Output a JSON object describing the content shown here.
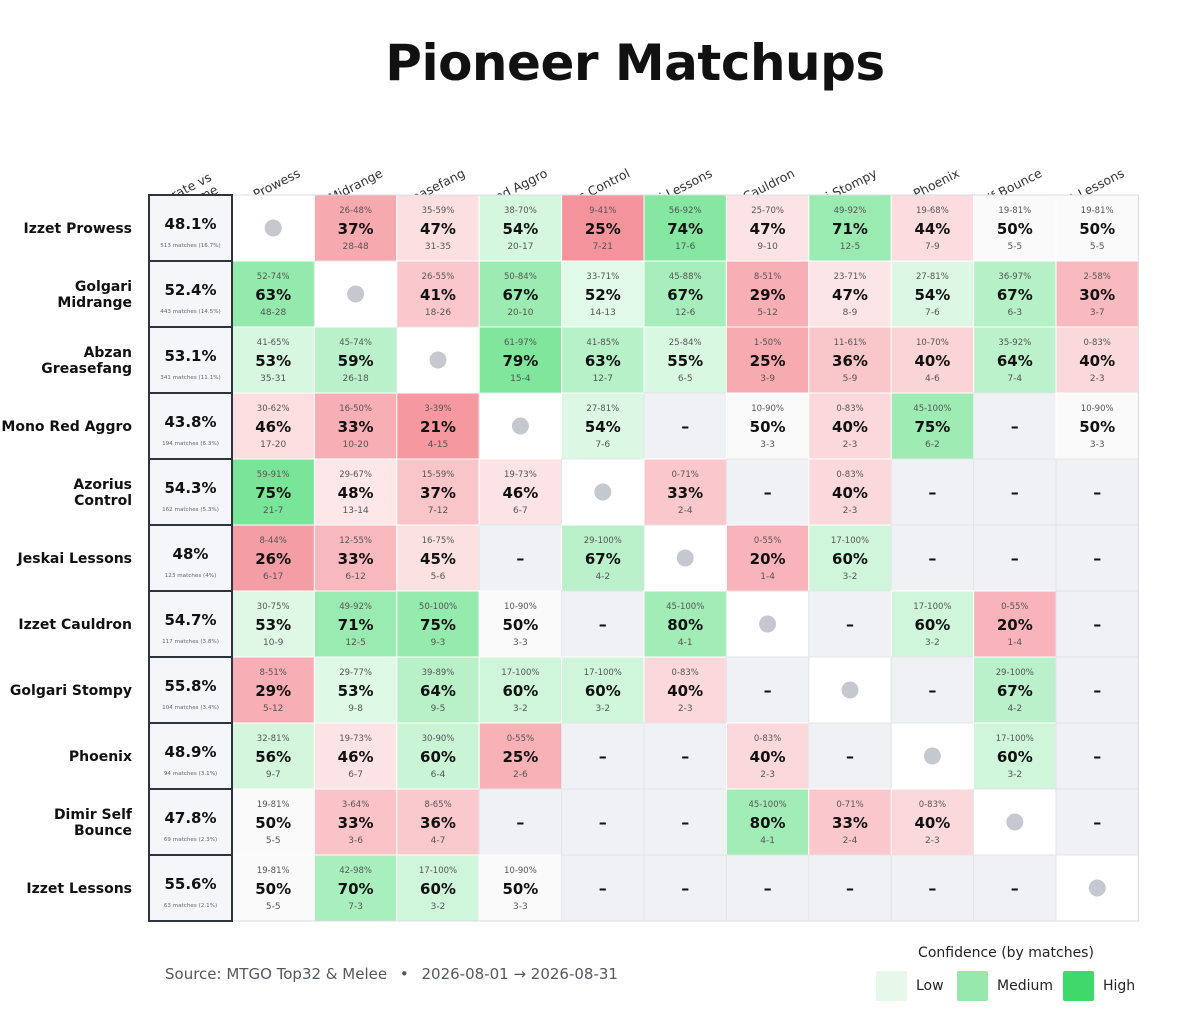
{
  "title": "Pioneer Matchups",
  "footer": {
    "source": "Source: MTGO Top32 & Melee",
    "separator": "•",
    "date_range": "2026-08-01 → 2026-08-31"
  },
  "legend": {
    "title": "Confidence (by matches)",
    "items": [
      {
        "label": "Low",
        "color": "#e6f8ea"
      },
      {
        "label": "Medium",
        "color": "#96e8ac"
      },
      {
        "label": "High",
        "color": "#3ed96a"
      }
    ]
  },
  "colors": {
    "neutral": "#fafafa",
    "empty": "#f0f1f4",
    "mirror_dot": "#c5c8cf",
    "border_dark": "#2d343c",
    "meta_bg": "#f4f6f9"
  },
  "chart_data": {
    "type": "heatmap",
    "title": "Pioneer Matchups",
    "meta_header": [
      "Winrate vs",
      "Metagame"
    ],
    "columns": [
      "Izzet Prowess",
      "Golgari Midrange",
      "Abzan Greasefang",
      "Mono Red Aggro",
      "Azorius Control",
      "Jeskai Lessons",
      "Izzet Cauldron",
      "Golgari Stompy",
      "Phoenix",
      "Dimir Self Bounce",
      "Izzet Lessons"
    ],
    "rows": [
      {
        "label": "Izzet Prowess",
        "label_lines": [
          "Izzet Prowess"
        ],
        "winrate": "48.1%",
        "matches": "513 matches (16.7%)",
        "cells": [
          {
            "mirror": true
          },
          {
            "range": "26-48%",
            "pct": "37%",
            "record": "28-48"
          },
          {
            "range": "35-59%",
            "pct": "47%",
            "record": "31-35"
          },
          {
            "range": "38-70%",
            "pct": "54%",
            "record": "20-17"
          },
          {
            "range": "9-41%",
            "pct": "25%",
            "record": "7-21"
          },
          {
            "range": "56-92%",
            "pct": "74%",
            "record": "17-6"
          },
          {
            "range": "25-70%",
            "pct": "47%",
            "record": "9-10"
          },
          {
            "range": "49-92%",
            "pct": "71%",
            "record": "12-5"
          },
          {
            "range": "19-68%",
            "pct": "44%",
            "record": "7-9"
          },
          {
            "range": "19-81%",
            "pct": "50%",
            "record": "5-5"
          },
          {
            "range": "19-81%",
            "pct": "50%",
            "record": "5-5"
          }
        ]
      },
      {
        "label": "Golgari Midrange",
        "label_lines": [
          "Golgari",
          "Midrange"
        ],
        "winrate": "52.4%",
        "matches": "443 matches (14.5%)",
        "cells": [
          {
            "range": "52-74%",
            "pct": "63%",
            "record": "48-28"
          },
          {
            "mirror": true
          },
          {
            "range": "26-55%",
            "pct": "41%",
            "record": "18-26"
          },
          {
            "range": "50-84%",
            "pct": "67%",
            "record": "20-10"
          },
          {
            "range": "33-71%",
            "pct": "52%",
            "record": "14-13"
          },
          {
            "range": "45-88%",
            "pct": "67%",
            "record": "12-6"
          },
          {
            "range": "8-51%",
            "pct": "29%",
            "record": "5-12"
          },
          {
            "range": "23-71%",
            "pct": "47%",
            "record": "8-9"
          },
          {
            "range": "27-81%",
            "pct": "54%",
            "record": "7-6"
          },
          {
            "range": "36-97%",
            "pct": "67%",
            "record": "6-3"
          },
          {
            "range": "2-58%",
            "pct": "30%",
            "record": "3-7"
          }
        ]
      },
      {
        "label": "Abzan Greasefang",
        "label_lines": [
          "Abzan",
          "Greasefang"
        ],
        "winrate": "53.1%",
        "matches": "341 matches (11.1%)",
        "cells": [
          {
            "range": "41-65%",
            "pct": "53%",
            "record": "35-31"
          },
          {
            "range": "45-74%",
            "pct": "59%",
            "record": "26-18"
          },
          {
            "mirror": true
          },
          {
            "range": "61-97%",
            "pct": "79%",
            "record": "15-4"
          },
          {
            "range": "41-85%",
            "pct": "63%",
            "record": "12-7"
          },
          {
            "range": "25-84%",
            "pct": "55%",
            "record": "6-5"
          },
          {
            "range": "1-50%",
            "pct": "25%",
            "record": "3-9"
          },
          {
            "range": "11-61%",
            "pct": "36%",
            "record": "5-9"
          },
          {
            "range": "10-70%",
            "pct": "40%",
            "record": "4-6"
          },
          {
            "range": "35-92%",
            "pct": "64%",
            "record": "7-4"
          },
          {
            "range": "0-83%",
            "pct": "40%",
            "record": "2-3"
          }
        ]
      },
      {
        "label": "Mono Red Aggro",
        "label_lines": [
          "Mono Red Aggro"
        ],
        "winrate": "43.8%",
        "matches": "194 matches (6.3%)",
        "cells": [
          {
            "range": "30-62%",
            "pct": "46%",
            "record": "17-20"
          },
          {
            "range": "16-50%",
            "pct": "33%",
            "record": "10-20"
          },
          {
            "range": "3-39%",
            "pct": "21%",
            "record": "4-15"
          },
          {
            "mirror": true
          },
          {
            "range": "27-81%",
            "pct": "54%",
            "record": "7-6"
          },
          {
            "dash": "–"
          },
          {
            "range": "10-90%",
            "pct": "50%",
            "record": "3-3"
          },
          {
            "range": "0-83%",
            "pct": "40%",
            "record": "2-3"
          },
          {
            "range": "45-100%",
            "pct": "75%",
            "record": "6-2"
          },
          {
            "dash": "–"
          },
          {
            "range": "10-90%",
            "pct": "50%",
            "record": "3-3"
          }
        ]
      },
      {
        "label": "Azorius Control",
        "label_lines": [
          "Azorius",
          "Control"
        ],
        "winrate": "54.3%",
        "matches": "162 matches (5.3%)",
        "cells": [
          {
            "range": "59-91%",
            "pct": "75%",
            "record": "21-7"
          },
          {
            "range": "29-67%",
            "pct": "48%",
            "record": "13-14"
          },
          {
            "range": "15-59%",
            "pct": "37%",
            "record": "7-12"
          },
          {
            "range": "19-73%",
            "pct": "46%",
            "record": "6-7"
          },
          {
            "mirror": true
          },
          {
            "range": "0-71%",
            "pct": "33%",
            "record": "2-4"
          },
          {
            "dash": "–"
          },
          {
            "range": "0-83%",
            "pct": "40%",
            "record": "2-3"
          },
          {
            "dash": "–"
          },
          {
            "dash": "–"
          },
          {
            "dash": "–"
          }
        ]
      },
      {
        "label": "Jeskai Lessons",
        "label_lines": [
          "Jeskai Lessons"
        ],
        "winrate": "48%",
        "matches": "123 matches (4%)",
        "cells": [
          {
            "range": "8-44%",
            "pct": "26%",
            "record": "6-17"
          },
          {
            "range": "12-55%",
            "pct": "33%",
            "record": "6-12"
          },
          {
            "range": "16-75%",
            "pct": "45%",
            "record": "5-6"
          },
          {
            "dash": "–"
          },
          {
            "range": "29-100%",
            "pct": "67%",
            "record": "4-2"
          },
          {
            "mirror": true
          },
          {
            "range": "0-55%",
            "pct": "20%",
            "record": "1-4"
          },
          {
            "range": "17-100%",
            "pct": "60%",
            "record": "3-2"
          },
          {
            "dash": "–"
          },
          {
            "dash": "–"
          },
          {
            "dash": "–"
          }
        ]
      },
      {
        "label": "Izzet Cauldron",
        "label_lines": [
          "Izzet Cauldron"
        ],
        "winrate": "54.7%",
        "matches": "117 matches (3.8%)",
        "cells": [
          {
            "range": "30-75%",
            "pct": "53%",
            "record": "10-9"
          },
          {
            "range": "49-92%",
            "pct": "71%",
            "record": "12-5"
          },
          {
            "range": "50-100%",
            "pct": "75%",
            "record": "9-3"
          },
          {
            "range": "10-90%",
            "pct": "50%",
            "record": "3-3"
          },
          {
            "dash": "–"
          },
          {
            "range": "45-100%",
            "pct": "80%",
            "record": "4-1"
          },
          {
            "mirror": true
          },
          {
            "dash": "–"
          },
          {
            "range": "17-100%",
            "pct": "60%",
            "record": "3-2"
          },
          {
            "range": "0-55%",
            "pct": "20%",
            "record": "1-4"
          },
          {
            "dash": "–"
          }
        ]
      },
      {
        "label": "Golgari Stompy",
        "label_lines": [
          "Golgari Stompy"
        ],
        "winrate": "55.8%",
        "matches": "104 matches (3.4%)",
        "cells": [
          {
            "range": "8-51%",
            "pct": "29%",
            "record": "5-12"
          },
          {
            "range": "29-77%",
            "pct": "53%",
            "record": "9-8"
          },
          {
            "range": "39-89%",
            "pct": "64%",
            "record": "9-5"
          },
          {
            "range": "17-100%",
            "pct": "60%",
            "record": "3-2"
          },
          {
            "range": "17-100%",
            "pct": "60%",
            "record": "3-2"
          },
          {
            "range": "0-83%",
            "pct": "40%",
            "record": "2-3"
          },
          {
            "dash": "–"
          },
          {
            "mirror": true
          },
          {
            "dash": "–"
          },
          {
            "range": "29-100%",
            "pct": "67%",
            "record": "4-2"
          },
          {
            "dash": "–"
          }
        ]
      },
      {
        "label": "Phoenix",
        "label_lines": [
          "Phoenix"
        ],
        "winrate": "48.9%",
        "matches": "94 matches (3.1%)",
        "cells": [
          {
            "range": "32-81%",
            "pct": "56%",
            "record": "9-7"
          },
          {
            "range": "19-73%",
            "pct": "46%",
            "record": "6-7"
          },
          {
            "range": "30-90%",
            "pct": "60%",
            "record": "6-4"
          },
          {
            "range": "0-55%",
            "pct": "25%",
            "record": "2-6"
          },
          {
            "dash": "–"
          },
          {
            "dash": "–"
          },
          {
            "range": "0-83%",
            "pct": "40%",
            "record": "2-3"
          },
          {
            "dash": "–"
          },
          {
            "mirror": true
          },
          {
            "range": "17-100%",
            "pct": "60%",
            "record": "3-2"
          },
          {
            "dash": "–"
          }
        ]
      },
      {
        "label": "Dimir Self Bounce",
        "label_lines": [
          "Dimir Self",
          "Bounce"
        ],
        "winrate": "47.8%",
        "matches": "69 matches (2.3%)",
        "cells": [
          {
            "range": "19-81%",
            "pct": "50%",
            "record": "5-5"
          },
          {
            "range": "3-64%",
            "pct": "33%",
            "record": "3-6"
          },
          {
            "range": "8-65%",
            "pct": "36%",
            "record": "4-7"
          },
          {
            "dash": "–"
          },
          {
            "dash": "–"
          },
          {
            "dash": "–"
          },
          {
            "range": "45-100%",
            "pct": "80%",
            "record": "4-1"
          },
          {
            "range": "0-71%",
            "pct": "33%",
            "record": "2-4"
          },
          {
            "range": "0-83%",
            "pct": "40%",
            "record": "2-3"
          },
          {
            "mirror": true
          },
          {
            "dash": "–"
          }
        ]
      },
      {
        "label": "Izzet Lessons",
        "label_lines": [
          "Izzet Lessons"
        ],
        "winrate": "55.6%",
        "matches": "63 matches (2.1%)",
        "cells": [
          {
            "range": "19-81%",
            "pct": "50%",
            "record": "5-5"
          },
          {
            "range": "42-98%",
            "pct": "70%",
            "record": "7-3"
          },
          {
            "range": "17-100%",
            "pct": "60%",
            "record": "3-2"
          },
          {
            "range": "10-90%",
            "pct": "50%",
            "record": "3-3"
          },
          {
            "dash": "–"
          },
          {
            "dash": "–"
          },
          {
            "dash": "–"
          },
          {
            "dash": "–"
          },
          {
            "dash": "–"
          },
          {
            "dash": "–"
          },
          {
            "mirror": true
          }
        ]
      }
    ]
  }
}
